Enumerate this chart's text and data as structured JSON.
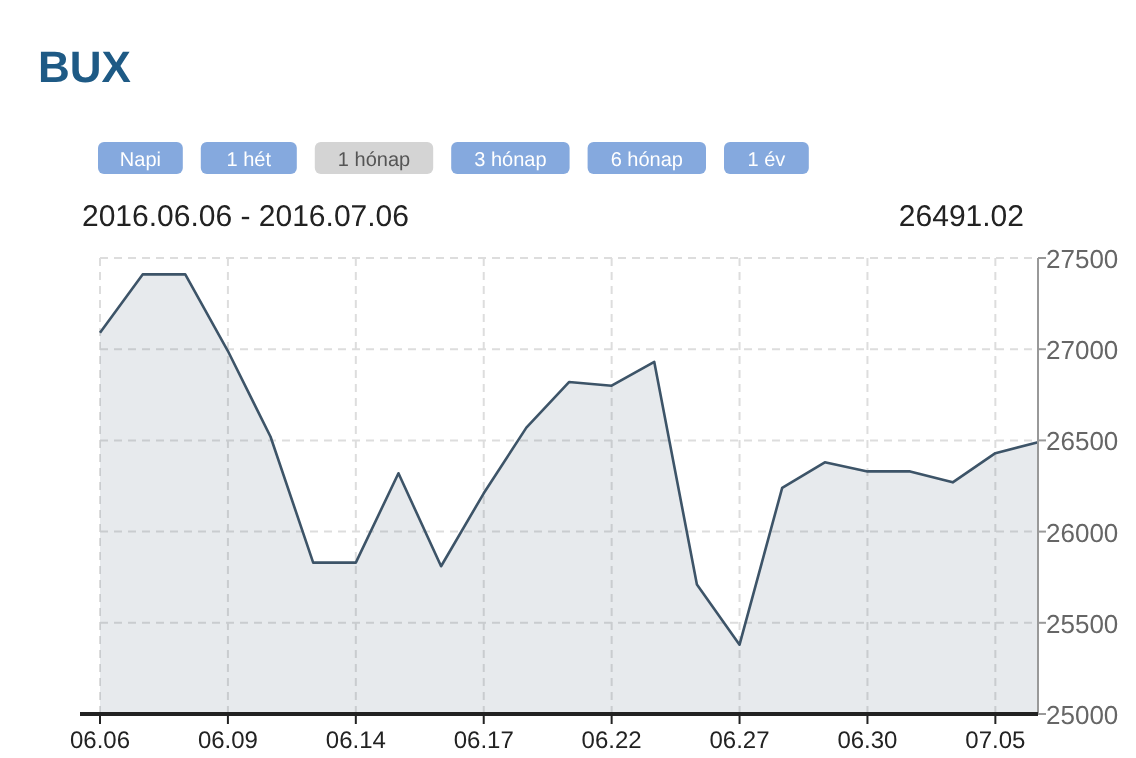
{
  "chart_data": {
    "type": "area",
    "title": "BUX",
    "subtitle": "2016.06.06 - 2016.07.06",
    "annotations": [
      "Napi",
      "1 hét",
      "1 hónap",
      "3 hónap",
      "6 hónap",
      "1 év",
      "26491.02"
    ],
    "categories": [
      "06.06",
      null,
      null,
      "06.09",
      null,
      null,
      "06.14",
      null,
      null,
      "06.17",
      null,
      null,
      "06.22",
      null,
      null,
      "06.27",
      null,
      null,
      "06.30",
      null,
      null,
      "07.05",
      null
    ],
    "series": [
      {
        "color": "#3d5468",
        "values": [
          27090,
          27410,
          27410,
          26990,
          26520,
          25830,
          25830,
          26320,
          25810,
          26210,
          26570,
          26820,
          26800,
          26930,
          25710,
          25380,
          26240,
          26380,
          26330,
          26330,
          26270,
          26430,
          26490
        ]
      }
    ],
    "ylim": [
      25000,
      27500
    ],
    "yticks": [
      25000,
      25500,
      26000,
      26500,
      27000,
      27500
    ],
    "grid": true
  }
}
